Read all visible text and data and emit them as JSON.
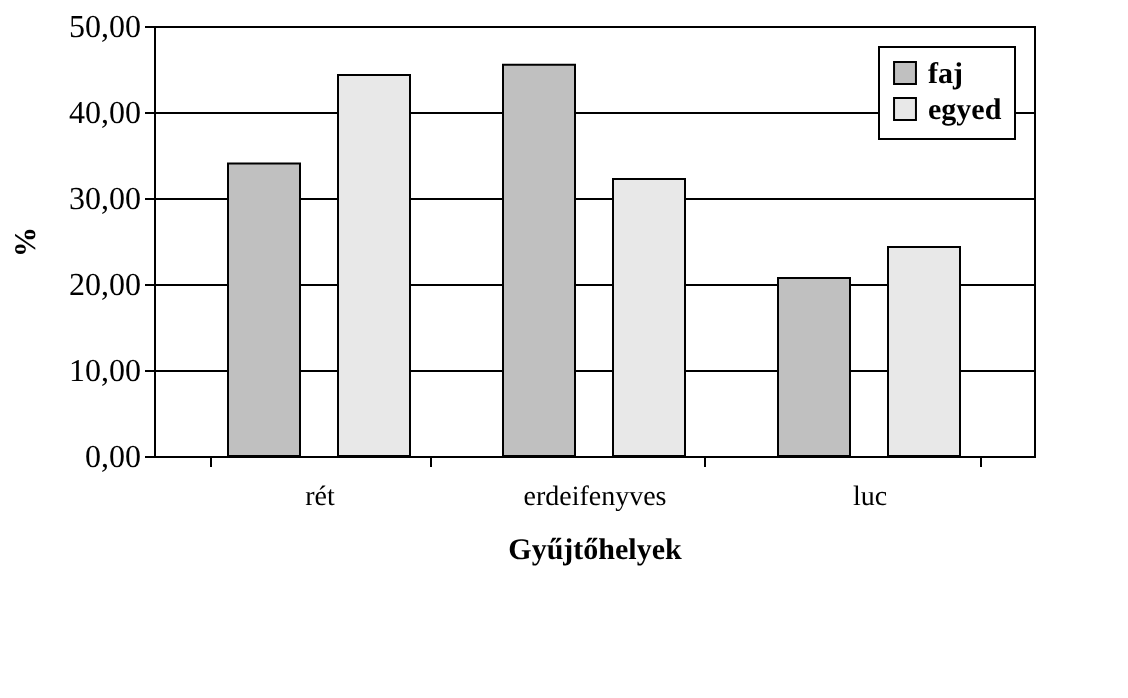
{
  "chart_data": {
    "type": "bar",
    "xlabel": "Gyűjtőhelyek",
    "ylabel": "%",
    "categories": [
      "rét",
      "erdeifenyves",
      "luc"
    ],
    "series": [
      {
        "name": "faj",
        "color": "#c0c0c0",
        "values": [
          34.0,
          45.5,
          20.7
        ]
      },
      {
        "name": "egyed",
        "color": "#e8e8e8",
        "values": [
          44.3,
          32.2,
          24.3
        ]
      }
    ],
    "ylim": [
      0,
      50
    ],
    "yticks": [
      {
        "value": 0,
        "label": "0,00"
      },
      {
        "value": 10,
        "label": "10,00"
      },
      {
        "value": 20,
        "label": "20,00"
      },
      {
        "value": 30,
        "label": "30,00"
      },
      {
        "value": 40,
        "label": "40,00"
      },
      {
        "value": 50,
        "label": "50,00"
      }
    ],
    "grid": "y",
    "legend": "top right"
  }
}
